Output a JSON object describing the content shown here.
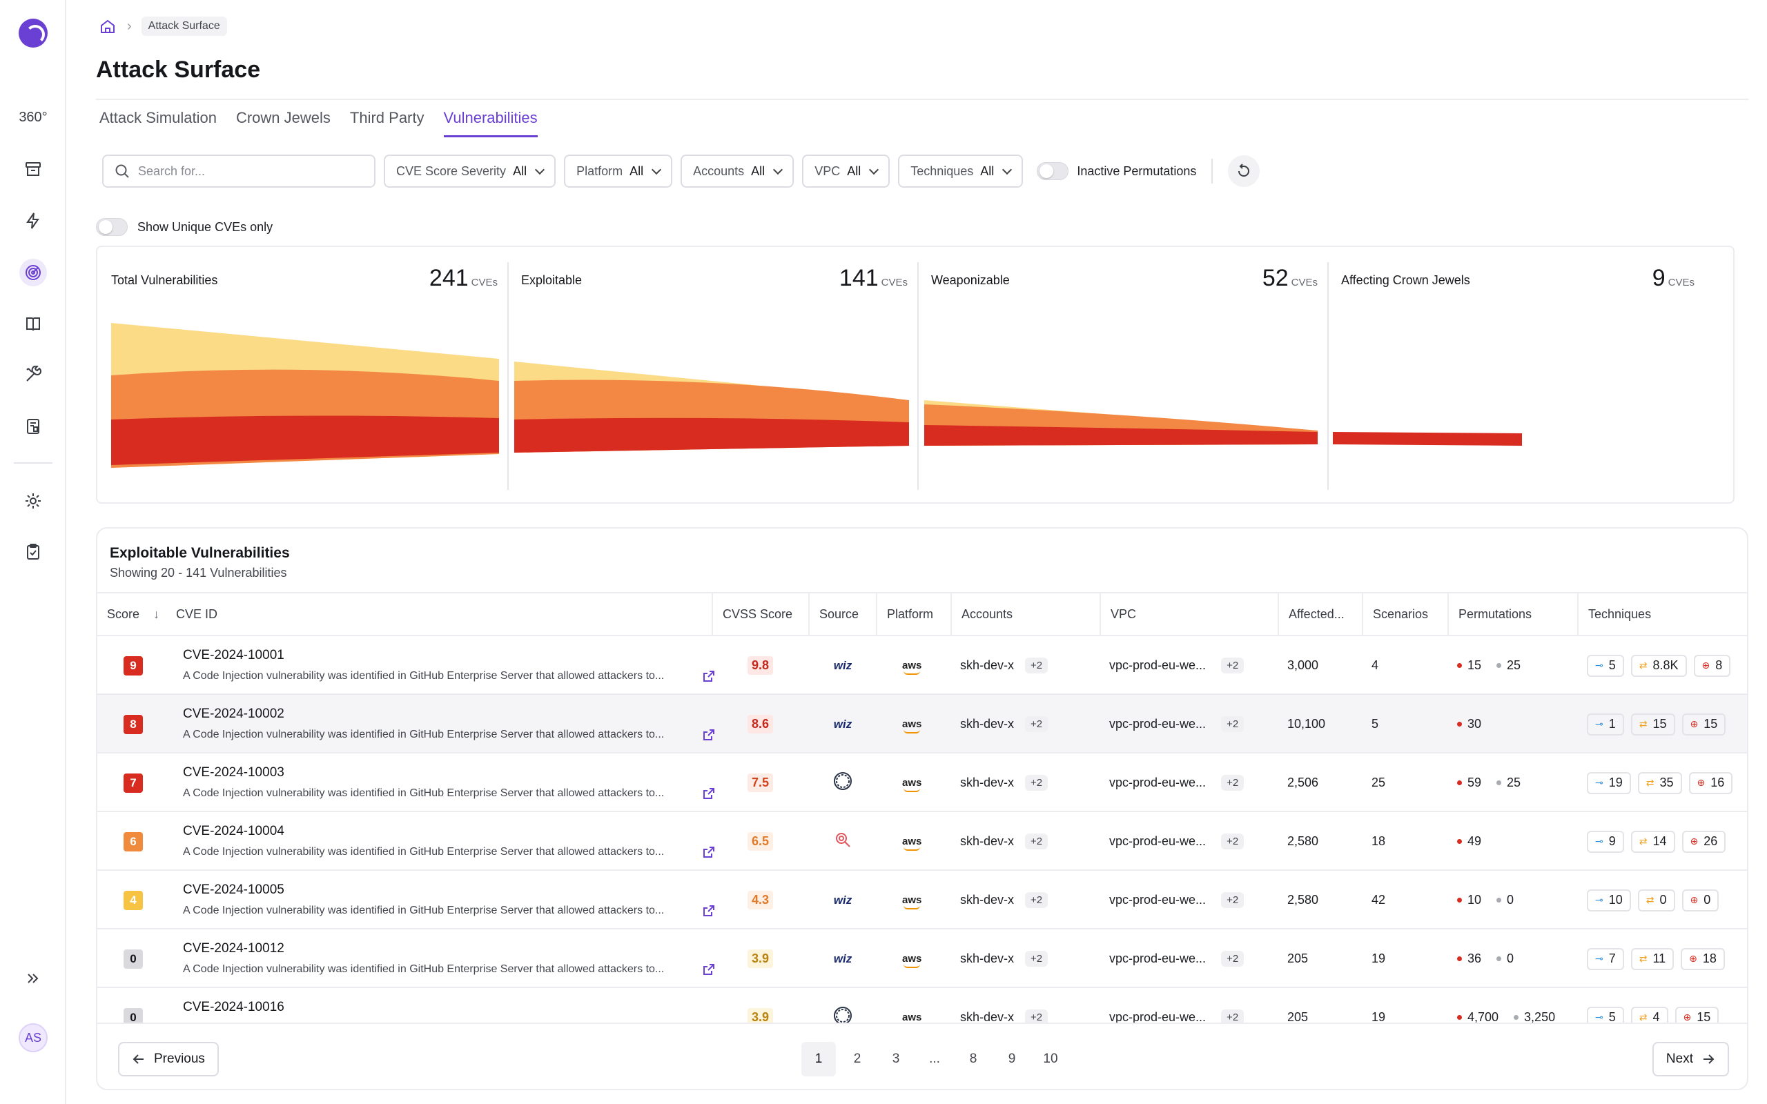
{
  "sidebar": {
    "icons": [
      "logo-icon",
      "overview-360-icon",
      "archive-icon",
      "lightning-icon",
      "radar-icon",
      "book-icon",
      "tools-icon",
      "report-icon",
      "settings-icon",
      "clipboard-check-icon",
      "expand-icon"
    ],
    "label_360": "360°",
    "avatar_initials": "AS"
  },
  "breadcrumb": {
    "current": "Attack Surface"
  },
  "page_title": "Attack Surface",
  "tabs": [
    {
      "label": "Attack Simulation",
      "active": false
    },
    {
      "label": "Crown Jewels",
      "active": false
    },
    {
      "label": "Third Party",
      "active": false
    },
    {
      "label": "Vulnerabilities",
      "active": true
    }
  ],
  "filters": {
    "search_placeholder": "Search for...",
    "selects": [
      {
        "label": "CVE Score Severity",
        "value": "All"
      },
      {
        "label": "Platform",
        "value": "All"
      },
      {
        "label": "Accounts",
        "value": "All"
      },
      {
        "label": "VPC",
        "value": "All"
      },
      {
        "label": "Techniques",
        "value": "All"
      }
    ],
    "inactive_permutations_label": "Inactive Permutations",
    "unique_cves_label": "Show Unique CVEs only"
  },
  "funnel": {
    "unit": "CVEs",
    "stages": [
      {
        "label": "Total Vulnerabilities",
        "count": "241"
      },
      {
        "label": "Exploitable",
        "count": "141"
      },
      {
        "label": "Weaponizable",
        "count": "52"
      },
      {
        "label": "Affecting  Crown Jewels",
        "count": "9"
      }
    ],
    "colors": {
      "low": "#fcdb86",
      "mid": "#f38845",
      "high": "#d92c20"
    }
  },
  "table": {
    "title": "Exploitable Vulnerabilities",
    "subtitle": "Showing 20 - 141 Vulnerabilities",
    "columns": [
      "Score",
      "CVE ID",
      "CVSS Score",
      "Source",
      "Platform",
      "Accounts",
      "VPC",
      "Affected...",
      "Scenarios",
      "Permutations",
      "Techniques"
    ],
    "description": "A Code Injection vulnerability was identified in GitHub Enterprise Server that allowed attackers to...",
    "rows": [
      {
        "score": "9",
        "score_color": "#d92c20",
        "cve": "CVE-2024-10001",
        "cvss": "9.8",
        "cvss_color": "#c4271c",
        "cvss_bg": "#fde8e6",
        "source": "wiz",
        "platform": "aws",
        "account": "skh-dev-x",
        "account_more": "+2",
        "vpc": "vpc-prod-eu-we...",
        "vpc_more": "+2",
        "affected": "3,000",
        "scenarios": "4",
        "perm_red": "15",
        "perm_gray": "25",
        "tech_a": "5",
        "tech_b": "8.8K",
        "tech_c": "8",
        "highlight": false
      },
      {
        "score": "8",
        "score_color": "#d92c20",
        "cve": "CVE-2024-10002",
        "cvss": "8.6",
        "cvss_color": "#c4271c",
        "cvss_bg": "#fde8e6",
        "source": "wiz",
        "platform": "aws",
        "account": "skh-dev-x",
        "account_more": "+2",
        "vpc": "vpc-prod-eu-we...",
        "vpc_more": "+2",
        "affected": "10,100",
        "scenarios": "5",
        "perm_red": "30",
        "perm_gray": "",
        "tech_a": "1",
        "tech_b": "15",
        "tech_c": "15",
        "highlight": true
      },
      {
        "score": "7",
        "score_color": "#d92c20",
        "cve": "CVE-2024-10003",
        "cvss": "7.5",
        "cvss_color": "#d1451c",
        "cvss_bg": "#fdece5",
        "source": "hex",
        "platform": "aws",
        "account": "skh-dev-x",
        "account_more": "+2",
        "vpc": "vpc-prod-eu-we...",
        "vpc_more": "+2",
        "affected": "2,506",
        "scenarios": "25",
        "perm_red": "59",
        "perm_gray": "25",
        "tech_a": "19",
        "tech_b": "35",
        "tech_c": "16",
        "highlight": false
      },
      {
        "score": "6",
        "score_color": "#f08a3c",
        "cve": "CVE-2024-10004",
        "cvss": "6.5",
        "cvss_color": "#e07a2a",
        "cvss_bg": "#fef0e4",
        "source": "magnifier",
        "platform": "aws",
        "account": "skh-dev-x",
        "account_more": "+2",
        "vpc": "vpc-prod-eu-we...",
        "vpc_more": "+2",
        "affected": "2,580",
        "scenarios": "18",
        "perm_red": "49",
        "perm_gray": "",
        "tech_a": "9",
        "tech_b": "14",
        "tech_c": "26",
        "highlight": false
      },
      {
        "score": "4",
        "score_color": "#f6c343",
        "cve": "CVE-2024-10005",
        "cvss": "4.3",
        "cvss_color": "#e07a2a",
        "cvss_bg": "#fef0e4",
        "source": "wiz",
        "platform": "aws",
        "account": "skh-dev-x",
        "account_more": "+2",
        "vpc": "vpc-prod-eu-we...",
        "vpc_more": "+2",
        "affected": "2,580",
        "scenarios": "42",
        "perm_red": "10",
        "perm_gray": "0",
        "tech_a": "10",
        "tech_b": "0",
        "tech_c": "0",
        "highlight": false
      },
      {
        "score": "0",
        "score_color": "#d9d9de",
        "cve": "CVE-2024-10012",
        "cvss": "3.9",
        "cvss_color": "#b88310",
        "cvss_bg": "#fdf4dc",
        "source": "wiz",
        "platform": "aws",
        "account": "skh-dev-x",
        "account_more": "+2",
        "vpc": "vpc-prod-eu-we...",
        "vpc_more": "+2",
        "affected": "205",
        "scenarios": "19",
        "perm_red": "36",
        "perm_gray": "0",
        "tech_a": "7",
        "tech_b": "11",
        "tech_c": "18",
        "highlight": false
      },
      {
        "score": "0",
        "score_color": "#d9d9de",
        "cve": "CVE-2024-10016",
        "cvss": "3.9",
        "cvss_color": "#b88310",
        "cvss_bg": "#fdf4dc",
        "source": "hex",
        "platform": "aws",
        "account": "skh-dev-x",
        "account_more": "+2",
        "vpc": "vpc-prod-eu-we...",
        "vpc_more": "+2",
        "affected": "205",
        "scenarios": "19",
        "perm_red": "4,700",
        "perm_gray": "3,250",
        "tech_a": "5",
        "tech_b": "4",
        "tech_c": "15",
        "highlight": false
      }
    ]
  },
  "pagination": {
    "previous_label": "Previous",
    "next_label": "Next",
    "pages": [
      "1",
      "2",
      "3",
      "...",
      "8",
      "9",
      "10"
    ],
    "current": "1"
  }
}
